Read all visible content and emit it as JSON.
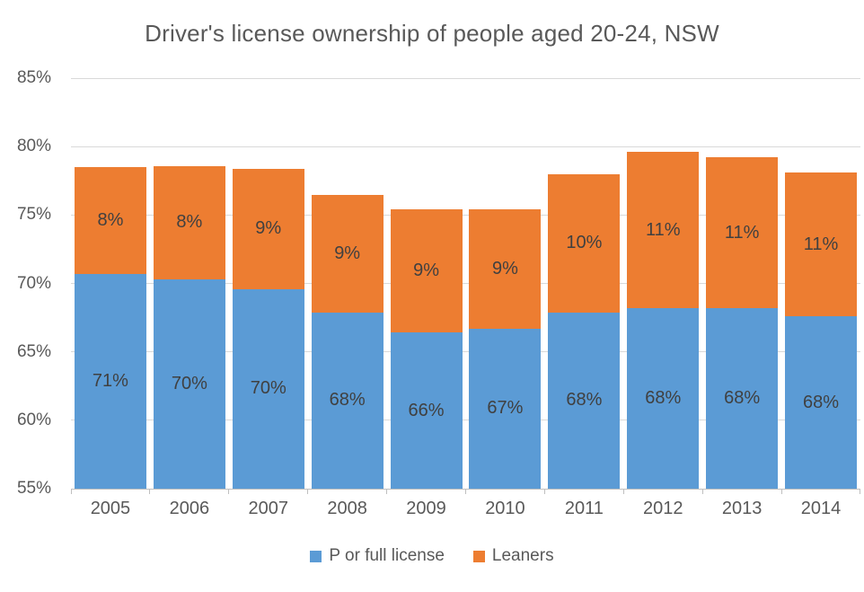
{
  "title": "Driver's license ownership of people aged 20-24, NSW",
  "chart_data": {
    "type": "bar",
    "stacked": true,
    "title": "Driver's license ownership of people aged 20-24, NSW",
    "categories": [
      "2005",
      "2006",
      "2007",
      "2008",
      "2009",
      "2010",
      "2011",
      "2012",
      "2013",
      "2014"
    ],
    "series": [
      {
        "name": "P or full license",
        "color": "#5B9BD5",
        "values": [
          70.7,
          70.3,
          69.6,
          67.9,
          66.4,
          66.7,
          67.9,
          68.2,
          68.2,
          67.6
        ],
        "labels": [
          "71%",
          "70%",
          "70%",
          "68%",
          "66%",
          "67%",
          "68%",
          "68%",
          "68%",
          "68%"
        ]
      },
      {
        "name": "Leaners",
        "color": "#ED7D31",
        "values": [
          7.8,
          8.3,
          8.8,
          8.6,
          9.0,
          8.7,
          10.1,
          11.4,
          11.0,
          10.5
        ],
        "labels": [
          "8%",
          "8%",
          "9%",
          "9%",
          "9%",
          "9%",
          "10%",
          "11%",
          "11%",
          "11%"
        ]
      }
    ],
    "xlabel": "",
    "ylabel": "",
    "ylim": [
      55,
      85
    ],
    "y_ticks": [
      "85%",
      "80%",
      "75%",
      "70%",
      "65%",
      "60%",
      "55%"
    ],
    "grid": true,
    "legend_position": "bottom"
  }
}
